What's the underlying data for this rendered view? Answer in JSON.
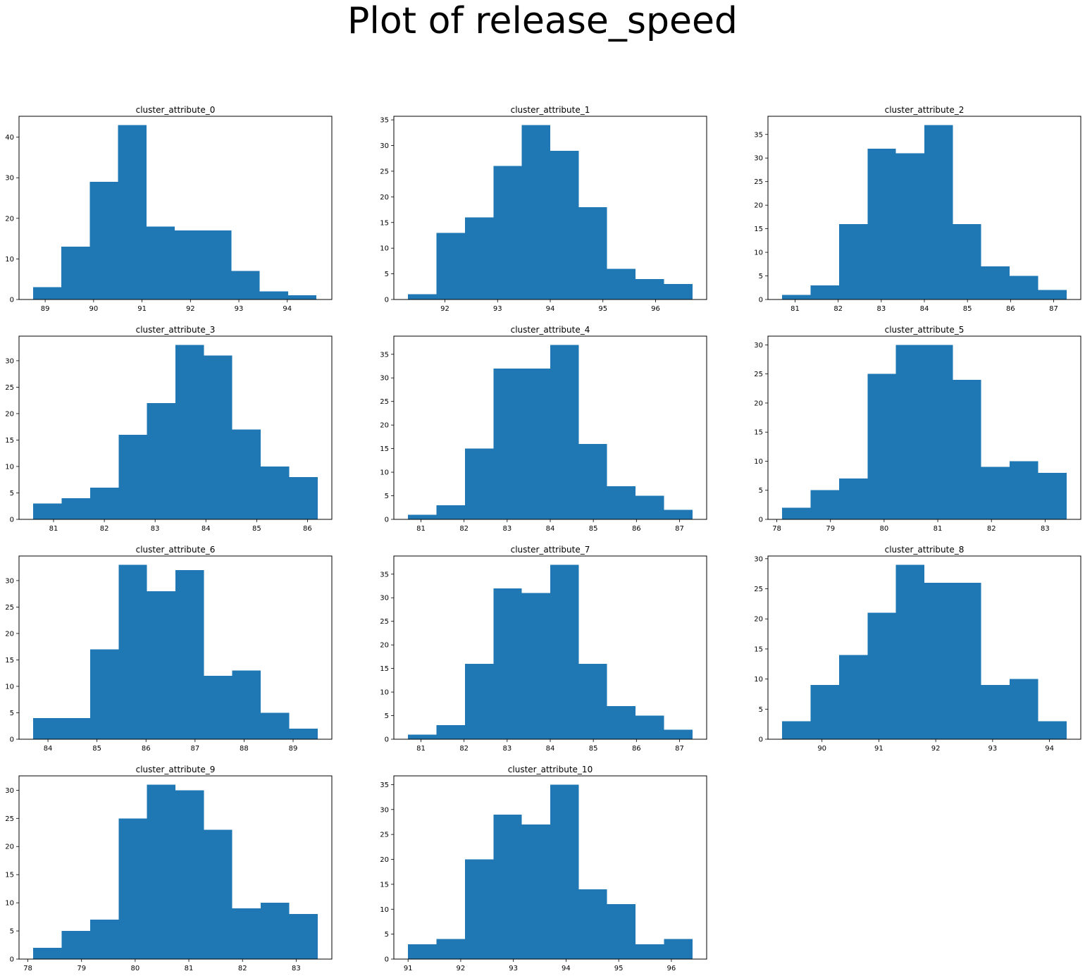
{
  "figure": {
    "title": "Plot of release_speed",
    "bar_color": "#1f77b4"
  },
  "chart_data": [
    {
      "type": "bar",
      "title": "cluster_attribute_0",
      "bin_start": 88.75,
      "bin_width": 0.585,
      "values": [
        3,
        13,
        29,
        43,
        18,
        17,
        17,
        7,
        2,
        1
      ],
      "xlim": [
        88.46,
        94.92
      ],
      "ylim": [
        0,
        45.15
      ],
      "xticks": [
        89,
        90,
        91,
        92,
        93,
        94
      ],
      "yticks": [
        0,
        10,
        20,
        30,
        40
      ]
    },
    {
      "type": "bar",
      "title": "cluster_attribute_1",
      "bin_start": 91.3,
      "bin_width": 0.54,
      "values": [
        1,
        13,
        16,
        26,
        34,
        29,
        18,
        6,
        4,
        3
      ],
      "xlim": [
        91.03,
        96.97
      ],
      "ylim": [
        0,
        35.7
      ],
      "xticks": [
        92,
        93,
        94,
        95,
        96
      ],
      "yticks": [
        0,
        5,
        10,
        15,
        20,
        25,
        30,
        35
      ]
    },
    {
      "type": "bar",
      "title": "cluster_attribute_2",
      "bin_start": 80.7,
      "bin_width": 0.66,
      "values": [
        1,
        3,
        16,
        32,
        31,
        37,
        16,
        7,
        5,
        2
      ],
      "xlim": [
        80.37,
        87.63
      ],
      "ylim": [
        0,
        38.85
      ],
      "xticks": [
        81,
        82,
        83,
        84,
        85,
        86,
        87
      ],
      "yticks": [
        0,
        5,
        10,
        15,
        20,
        25,
        30,
        35
      ]
    },
    {
      "type": "bar",
      "title": "cluster_attribute_3",
      "bin_start": 80.6,
      "bin_width": 0.56,
      "values": [
        3,
        4,
        6,
        16,
        22,
        33,
        31,
        17,
        10,
        8
      ],
      "xlim": [
        80.32,
        86.48
      ],
      "ylim": [
        0,
        34.65
      ],
      "xticks": [
        81,
        82,
        83,
        84,
        85,
        86
      ],
      "yticks": [
        0,
        5,
        10,
        15,
        20,
        25,
        30
      ]
    },
    {
      "type": "bar",
      "title": "cluster_attribute_4",
      "bin_start": 80.7,
      "bin_width": 0.66,
      "values": [
        1,
        3,
        15,
        32,
        32,
        37,
        16,
        7,
        5,
        2
      ],
      "xlim": [
        80.37,
        87.63
      ],
      "ylim": [
        0,
        38.85
      ],
      "xticks": [
        81,
        82,
        83,
        84,
        85,
        86,
        87
      ],
      "yticks": [
        0,
        5,
        10,
        15,
        20,
        25,
        30,
        35
      ]
    },
    {
      "type": "bar",
      "title": "cluster_attribute_5",
      "bin_start": 78.1,
      "bin_width": 0.53,
      "values": [
        2,
        5,
        7,
        25,
        30,
        30,
        24,
        9,
        10,
        8
      ],
      "xlim": [
        77.835,
        83.665
      ],
      "ylim": [
        0,
        31.5
      ],
      "xticks": [
        78,
        79,
        80,
        81,
        82,
        83
      ],
      "yticks": [
        0,
        5,
        10,
        15,
        20,
        25,
        30
      ]
    },
    {
      "type": "bar",
      "title": "cluster_attribute_6",
      "bin_start": 83.7,
      "bin_width": 0.58,
      "values": [
        4,
        4,
        17,
        33,
        28,
        32,
        12,
        13,
        5,
        2
      ],
      "xlim": [
        83.41,
        89.79
      ],
      "ylim": [
        0,
        34.65
      ],
      "xticks": [
        84,
        85,
        86,
        87,
        88,
        89
      ],
      "yticks": [
        0,
        5,
        10,
        15,
        20,
        25,
        30
      ]
    },
    {
      "type": "bar",
      "title": "cluster_attribute_7",
      "bin_start": 80.7,
      "bin_width": 0.66,
      "values": [
        1,
        3,
        16,
        32,
        31,
        37,
        16,
        7,
        5,
        2
      ],
      "xlim": [
        80.37,
        87.63
      ],
      "ylim": [
        0,
        38.85
      ],
      "xticks": [
        81,
        82,
        83,
        84,
        85,
        86,
        87
      ],
      "yticks": [
        0,
        5,
        10,
        15,
        20,
        25,
        30,
        35
      ]
    },
    {
      "type": "bar",
      "title": "cluster_attribute_8",
      "bin_start": 89.3,
      "bin_width": 0.5,
      "values": [
        3,
        9,
        14,
        21,
        29,
        26,
        26,
        9,
        10,
        3
      ],
      "xlim": [
        89.05,
        94.55
      ],
      "ylim": [
        0,
        30.45
      ],
      "xticks": [
        90,
        91,
        92,
        93,
        94
      ],
      "yticks": [
        0,
        5,
        10,
        15,
        20,
        25,
        30
      ]
    },
    {
      "type": "bar",
      "title": "cluster_attribute_9",
      "bin_start": 78.1,
      "bin_width": 0.53,
      "values": [
        2,
        5,
        7,
        25,
        31,
        30,
        23,
        9,
        10,
        8
      ],
      "xlim": [
        77.835,
        83.665
      ],
      "ylim": [
        0,
        32.55
      ],
      "xticks": [
        78,
        79,
        80,
        81,
        82,
        83
      ],
      "yticks": [
        0,
        5,
        10,
        15,
        20,
        25,
        30
      ]
    },
    {
      "type": "bar",
      "title": "cluster_attribute_10",
      "bin_start": 91.0,
      "bin_width": 0.54,
      "values": [
        3,
        4,
        20,
        29,
        27,
        35,
        14,
        11,
        3,
        4
      ],
      "xlim": [
        90.73,
        96.67
      ],
      "ylim": [
        0,
        36.75
      ],
      "xticks": [
        91,
        92,
        93,
        94,
        95,
        96
      ],
      "yticks": [
        0,
        5,
        10,
        15,
        20,
        25,
        30,
        35
      ]
    }
  ]
}
